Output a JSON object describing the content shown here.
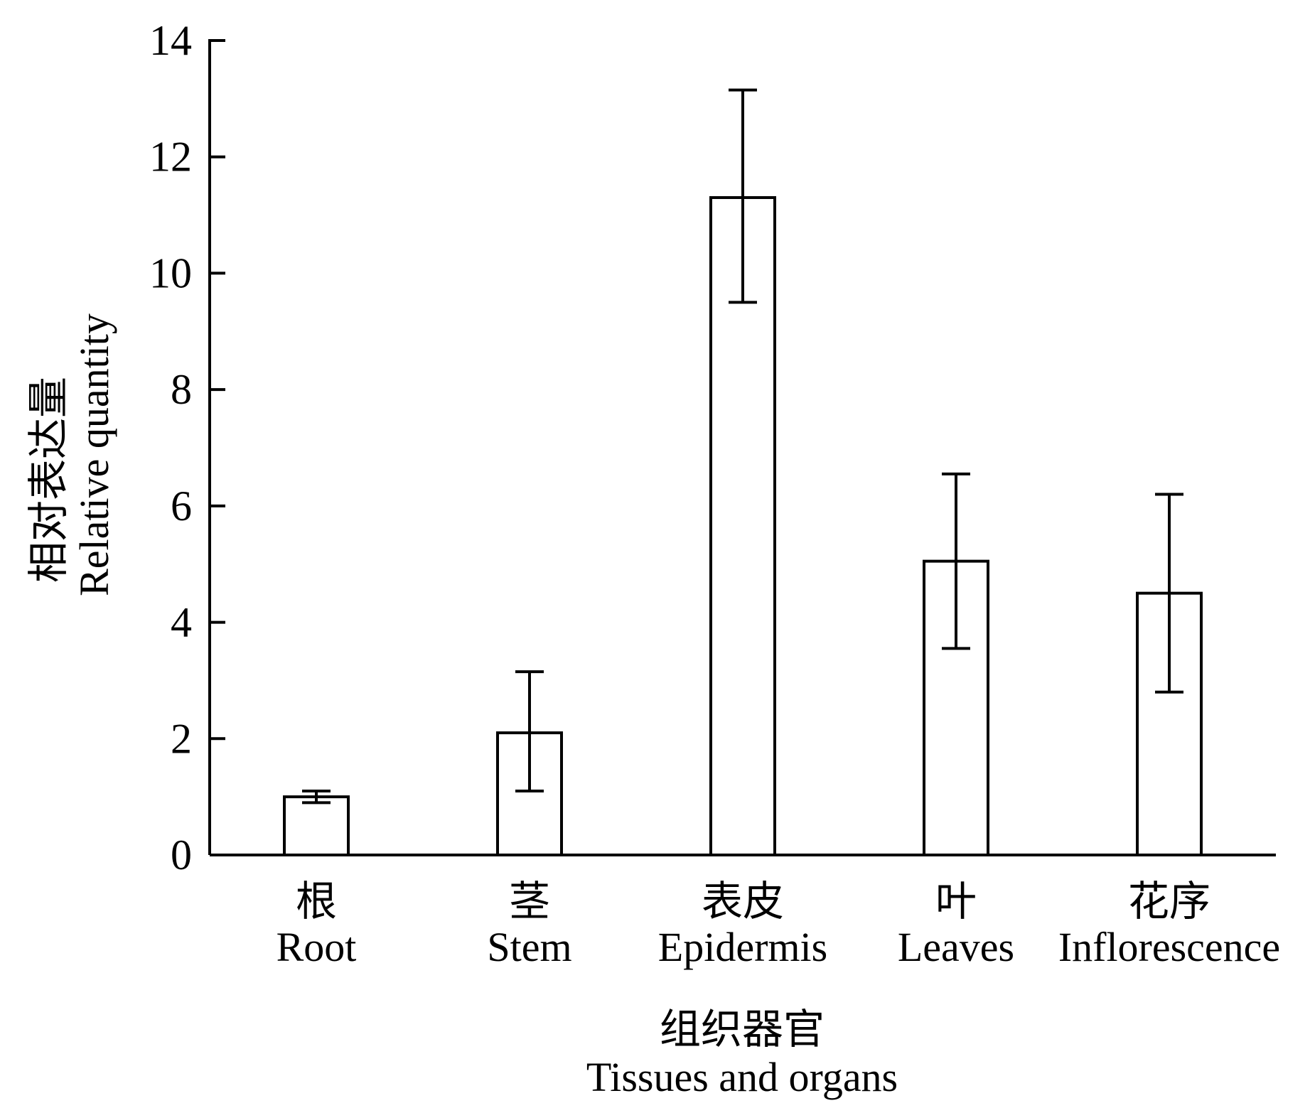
{
  "chart_data": {
    "type": "bar",
    "categories": [
      {
        "zh": "根",
        "en": "Root"
      },
      {
        "zh": "茎",
        "en": "Stem"
      },
      {
        "zh": "表皮",
        "en": "Epidermis"
      },
      {
        "zh": "叶",
        "en": "Leaves"
      },
      {
        "zh": "花序",
        "en": "Inflorescence"
      }
    ],
    "values": [
      1.0,
      2.1,
      11.3,
      5.05,
      4.5
    ],
    "error_bars": [
      {
        "low": 0.9,
        "high": 1.1
      },
      {
        "low": 1.1,
        "high": 3.15
      },
      {
        "low": 9.5,
        "high": 13.15
      },
      {
        "low": 3.55,
        "high": 6.55
      },
      {
        "low": 2.8,
        "high": 6.2
      }
    ],
    "ylim": [
      0,
      14
    ],
    "yticks": [
      "0",
      "2",
      "4",
      "6",
      "8",
      "10",
      "12",
      "14"
    ],
    "ylabel_zh": "相对表达量",
    "ylabel_en": "Relative quantity",
    "xlabel_zh": "组织器官",
    "xlabel_en": "Tissues and organs",
    "grid": false,
    "legend": "none",
    "colors": {
      "bar_fill": "#ffffff",
      "bar_stroke": "#000000"
    }
  }
}
